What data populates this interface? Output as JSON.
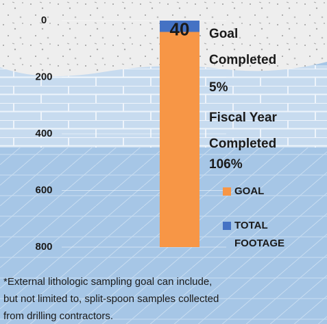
{
  "chart_data": {
    "type": "bar",
    "categories": [
      null
    ],
    "series": [
      {
        "name": "GOAL",
        "color": "#f79646",
        "values": [
          800
        ]
      },
      {
        "name": "TOTAL FOOTAGE",
        "color": "#4472c4",
        "values": [
          40
        ]
      }
    ],
    "ylim": [
      0,
      800
    ],
    "yticks": [
      0,
      200,
      400,
      600,
      800
    ],
    "y_inverted": true,
    "grid": true,
    "annotations": [
      "Goal",
      "Completed",
      "5%",
      "Fiscal Year",
      "Completed",
      "106%"
    ],
    "footnote": [
      "*External lithologic sampling goal can include,",
      "but not limited to, split-spoon samples collected",
      "from drilling contractors."
    ]
  }
}
